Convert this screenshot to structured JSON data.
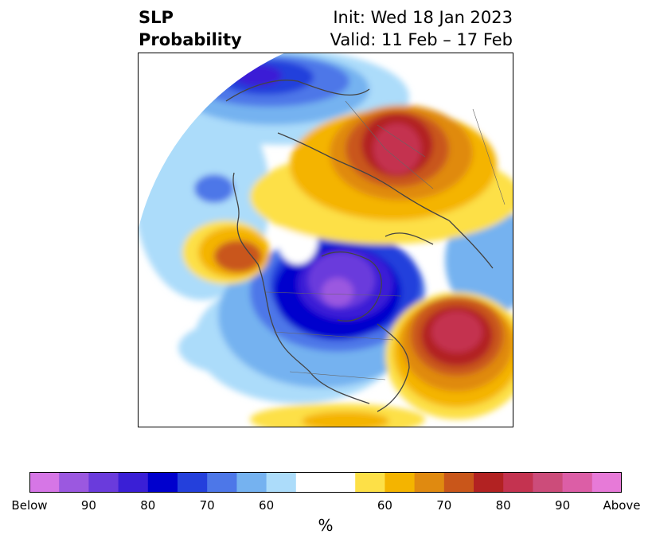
{
  "title": {
    "left_line1": "SLP",
    "left_line2": "Probability",
    "right_line1": "Init: Wed 18 Jan 2023",
    "right_line2": "Valid: 11 Feb – 17 Feb"
  },
  "colorbar": {
    "units": "%",
    "colors": [
      "#d676e6",
      "#9b58e0",
      "#6a3bdc",
      "#3a1fd6",
      "#0000cd",
      "#2440dc",
      "#4d77e8",
      "#75b2f0",
      "#acdcfa",
      "#ffffff",
      "#ffffff",
      "#fde047",
      "#f4b400",
      "#e08a10",
      "#c9561a",
      "#b22222",
      "#c43350",
      "#cc4c7a",
      "#dc5ea6",
      "#e77ad8"
    ],
    "tick_labels": [
      {
        "text": "Below",
        "index": 0
      },
      {
        "text": "90",
        "index": 2
      },
      {
        "text": "80",
        "index": 4
      },
      {
        "text": "70",
        "index": 6
      },
      {
        "text": "60",
        "index": 8
      },
      {
        "text": "60",
        "index": 12
      },
      {
        "text": "70",
        "index": 14
      },
      {
        "text": "80",
        "index": 16
      },
      {
        "text": "90",
        "index": 18
      },
      {
        "text": "Above",
        "index": 20
      }
    ]
  },
  "map": {
    "region": "Northern Hemisphere polar view",
    "features": [
      {
        "name": "below-normal-north-pacific",
        "level": "80-90 below"
      },
      {
        "name": "below-normal-north-america",
        "level": "85-90 below"
      },
      {
        "name": "above-normal-siberia",
        "level": "80-85 above"
      },
      {
        "name": "above-normal-north-atlantic",
        "level": "85-90 above"
      },
      {
        "name": "above-normal-north-pacific-east",
        "level": "70-75 above"
      }
    ]
  }
}
